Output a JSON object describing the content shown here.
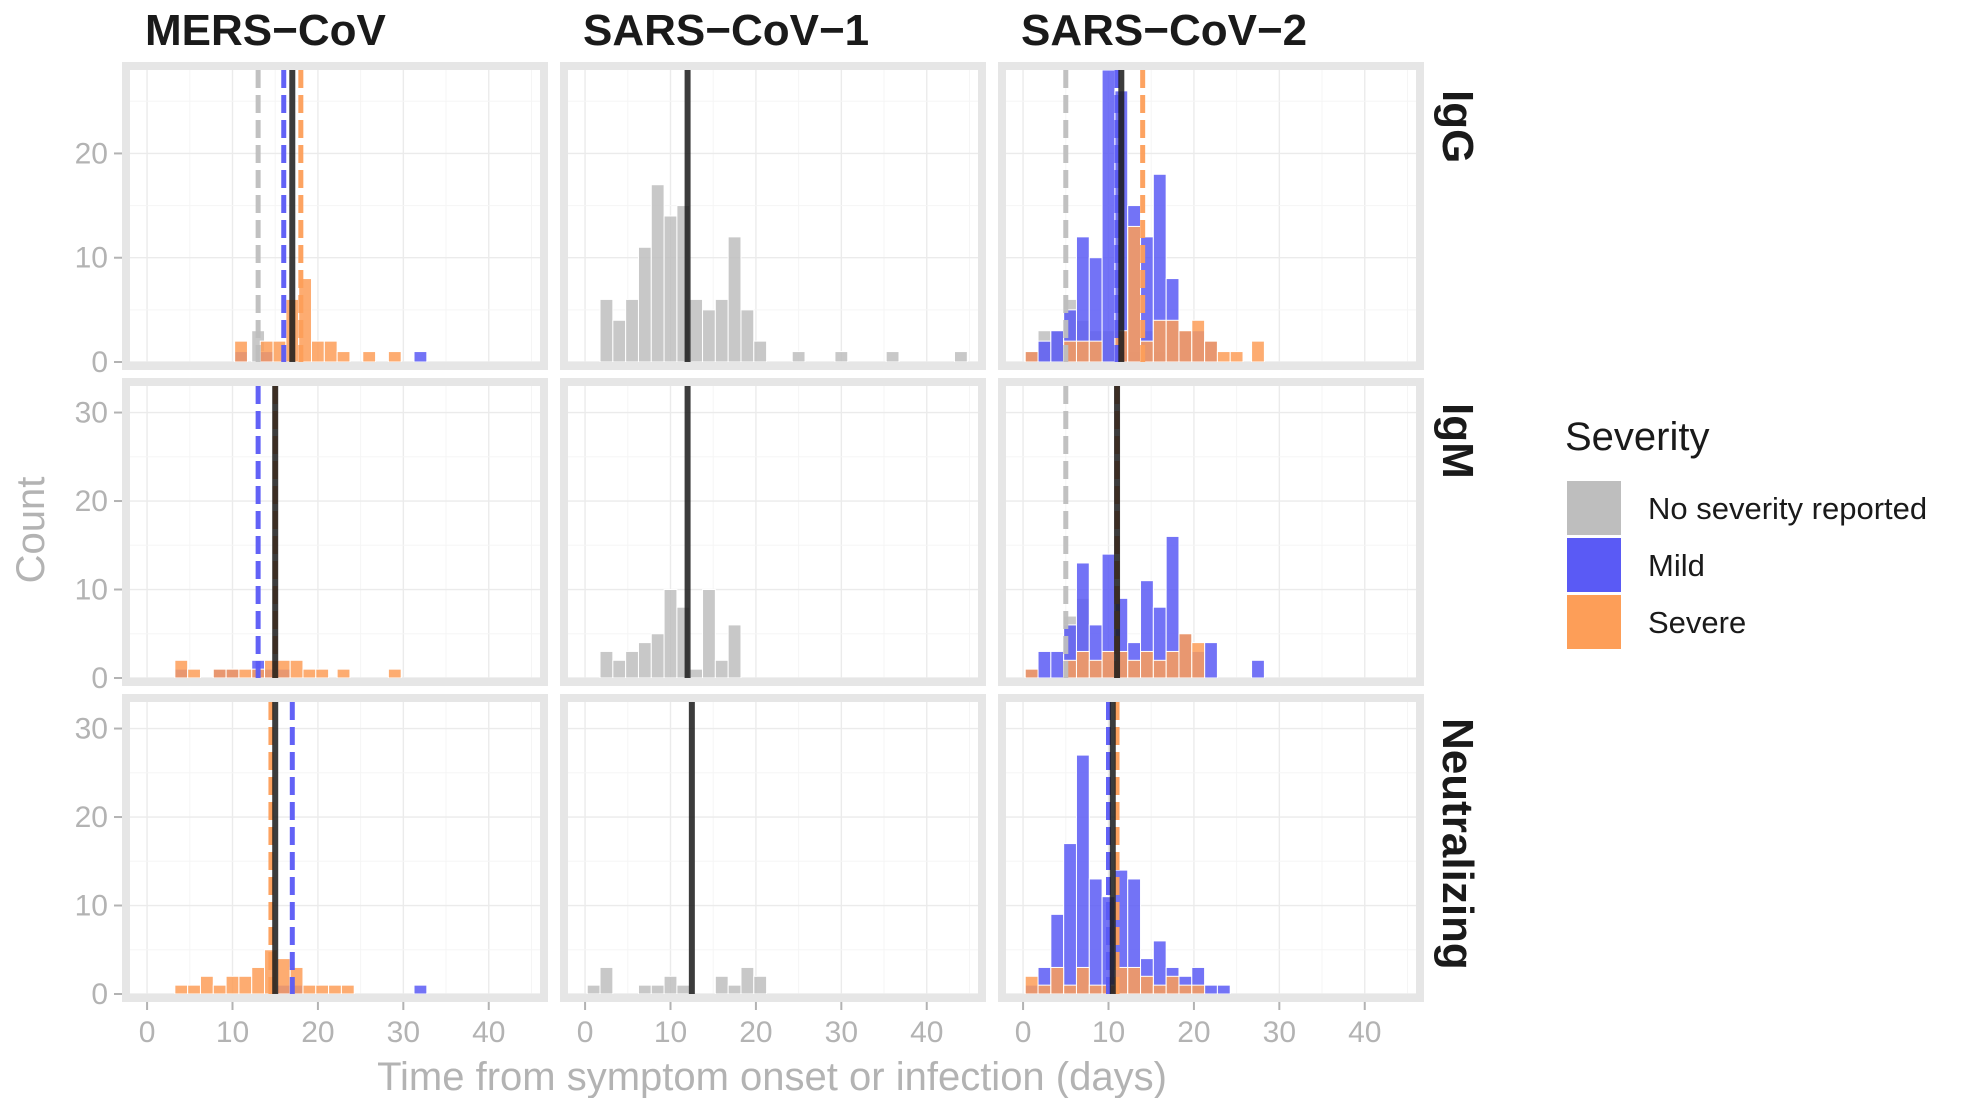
{
  "chart_data": {
    "type": "bar",
    "subtype": "faceted histogram",
    "columns": [
      "MERS−CoV",
      "SARS−CoV−1",
      "SARS−CoV−2"
    ],
    "rows": [
      "IgG",
      "IgM",
      "Neutralizing"
    ],
    "xlabel": "Time from symptom onset or infection (days)",
    "ylabel": "Count",
    "xlim": [
      -2,
      46
    ],
    "x_ticks": [
      0,
      10,
      20,
      30,
      40
    ],
    "row_ylim": [
      [
        0,
        28
      ],
      [
        0,
        33
      ],
      [
        0,
        33
      ]
    ],
    "row_y_ticks": [
      [
        0,
        10,
        20
      ],
      [
        0,
        10,
        20,
        30
      ],
      [
        0,
        10,
        20,
        30
      ]
    ],
    "bin_width": 1.5,
    "grid": true,
    "legend": {
      "title": "Severity",
      "position": "right",
      "items": [
        {
          "key": "none",
          "label": "No severity reported",
          "color": "#bebebe"
        },
        {
          "key": "mild",
          "label": "Mild",
          "color": "#5a5af5"
        },
        {
          "key": "severe",
          "label": "Severe",
          "color": "#fd9e58"
        }
      ]
    },
    "overlap_color": "#b54a48",
    "panels": [
      {
        "row": 0,
        "col": 0,
        "series": {
          "none": [
            [
              13,
              3
            ]
          ],
          "mild": [
            [
              11,
              1
            ],
            [
              14,
              1
            ],
            [
              32,
              1
            ]
          ],
          "severe": [
            [
              11,
              2
            ],
            [
              14,
              2
            ],
            [
              15.5,
              2
            ],
            [
              17,
              6
            ],
            [
              18.5,
              8
            ],
            [
              20,
              2
            ],
            [
              21.5,
              2
            ],
            [
              23,
              1
            ],
            [
              26,
              1
            ],
            [
              29,
              1
            ]
          ]
        },
        "lines": [
          {
            "key": "none",
            "x": 13,
            "style": "dashed"
          },
          {
            "key": "mild",
            "x": 16,
            "style": "dashed"
          },
          {
            "key": "severe",
            "x": 18,
            "style": "dashed"
          },
          {
            "key": "overall",
            "x": 17,
            "style": "solid"
          }
        ]
      },
      {
        "row": 0,
        "col": 1,
        "series": {
          "none": [
            [
              2.5,
              6
            ],
            [
              4,
              4
            ],
            [
              5.5,
              6
            ],
            [
              7,
              11
            ],
            [
              8.5,
              17
            ],
            [
              10,
              14
            ],
            [
              11.5,
              15
            ],
            [
              13,
              6
            ],
            [
              14.5,
              5
            ],
            [
              16,
              6
            ],
            [
              17.5,
              12
            ],
            [
              19,
              5
            ],
            [
              20.5,
              2
            ],
            [
              25,
              1
            ],
            [
              30,
              1
            ],
            [
              36,
              1
            ],
            [
              44,
              1
            ]
          ],
          "mild": [],
          "severe": []
        },
        "lines": [
          {
            "key": "overall",
            "x": 12,
            "style": "solid"
          }
        ]
      },
      {
        "row": 0,
        "col": 2,
        "series": {
          "none": [
            [
              2.5,
              3
            ],
            [
              4,
              3
            ],
            [
              5.5,
              6
            ],
            [
              7,
              4
            ],
            [
              8.5,
              3
            ],
            [
              10,
              3
            ],
            [
              11.5,
              1
            ],
            [
              13,
              1
            ],
            [
              14.5,
              3
            ],
            [
              16,
              1
            ]
          ],
          "mild": [
            [
              1,
              1
            ],
            [
              2.5,
              2
            ],
            [
              4,
              3
            ],
            [
              5.5,
              5
            ],
            [
              7,
              12
            ],
            [
              8.5,
              10
            ],
            [
              10,
              28
            ],
            [
              11.5,
              26
            ],
            [
              13,
              15
            ],
            [
              14.5,
              12
            ],
            [
              16,
              18
            ],
            [
              17.5,
              8
            ],
            [
              19,
              3
            ],
            [
              20.5,
              3
            ],
            [
              22,
              2
            ]
          ],
          "severe": [
            [
              1,
              1
            ],
            [
              5.5,
              2
            ],
            [
              7,
              2
            ],
            [
              8.5,
              2
            ],
            [
              11.5,
              3
            ],
            [
              13,
              13
            ],
            [
              14.5,
              2
            ],
            [
              16,
              4
            ],
            [
              17.5,
              4
            ],
            [
              19,
              3
            ],
            [
              20.5,
              4
            ],
            [
              22,
              2
            ],
            [
              23.5,
              1
            ],
            [
              25,
              1
            ],
            [
              27.5,
              2
            ]
          ]
        },
        "lines": [
          {
            "key": "none",
            "x": 5,
            "style": "dashed"
          },
          {
            "key": "mild",
            "x": 11,
            "style": "dashed"
          },
          {
            "key": "severe",
            "x": 14,
            "style": "dashed"
          },
          {
            "key": "overall",
            "x": 11.5,
            "style": "solid"
          }
        ]
      },
      {
        "row": 1,
        "col": 0,
        "series": {
          "none": [],
          "mild": [
            [
              4,
              1
            ],
            [
              8.5,
              1
            ],
            [
              10,
              1
            ],
            [
              13,
              2
            ],
            [
              14.5,
              1
            ],
            [
              16,
              1
            ]
          ],
          "severe": [
            [
              4,
              2
            ],
            [
              5.5,
              1
            ],
            [
              8.5,
              1
            ],
            [
              10,
              1
            ],
            [
              11.5,
              1
            ],
            [
              13,
              1
            ],
            [
              14.5,
              2
            ],
            [
              16,
              2
            ],
            [
              17.5,
              2
            ],
            [
              19,
              1
            ],
            [
              20.5,
              1
            ],
            [
              23,
              1
            ],
            [
              29,
              1
            ]
          ]
        },
        "lines": [
          {
            "key": "mild",
            "x": 13,
            "style": "dashed"
          },
          {
            "key": "severe",
            "x": 15,
            "style": "dashed"
          },
          {
            "key": "overall",
            "x": 15,
            "style": "solid"
          }
        ]
      },
      {
        "row": 1,
        "col": 1,
        "series": {
          "none": [
            [
              2.5,
              3
            ],
            [
              4,
              2
            ],
            [
              5.5,
              3
            ],
            [
              7,
              4
            ],
            [
              8.5,
              5
            ],
            [
              10,
              10
            ],
            [
              11.5,
              8
            ],
            [
              13,
              1
            ],
            [
              14.5,
              10
            ],
            [
              16,
              2
            ],
            [
              17.5,
              6
            ]
          ],
          "mild": [],
          "severe": []
        },
        "lines": [
          {
            "key": "overall",
            "x": 12,
            "style": "solid"
          }
        ]
      },
      {
        "row": 1,
        "col": 2,
        "series": {
          "none": [
            [
              5.5,
              7
            ],
            [
              7,
              9
            ],
            [
              10,
              2
            ],
            [
              11.5,
              2
            ]
          ],
          "mild": [
            [
              1,
              1
            ],
            [
              2.5,
              3
            ],
            [
              4,
              3
            ],
            [
              5.5,
              6
            ],
            [
              7,
              13
            ],
            [
              8.5,
              6
            ],
            [
              10,
              14
            ],
            [
              11.5,
              9
            ],
            [
              13,
              4
            ],
            [
              14.5,
              11
            ],
            [
              16,
              8
            ],
            [
              17.5,
              16
            ],
            [
              19,
              5
            ],
            [
              20.5,
              3
            ],
            [
              22,
              4
            ],
            [
              27.5,
              2
            ]
          ],
          "severe": [
            [
              1,
              1
            ],
            [
              5.5,
              2
            ],
            [
              7,
              3
            ],
            [
              8.5,
              2
            ],
            [
              10,
              3
            ],
            [
              11.5,
              3
            ],
            [
              13,
              2
            ],
            [
              14.5,
              3
            ],
            [
              16,
              2
            ],
            [
              17.5,
              3
            ],
            [
              19,
              5
            ],
            [
              20.5,
              4
            ]
          ]
        },
        "lines": [
          {
            "key": "none",
            "x": 5,
            "style": "dashed"
          },
          {
            "key": "mild",
            "x": 11,
            "style": "dashed"
          },
          {
            "key": "severe",
            "x": 11,
            "style": "dashed"
          },
          {
            "key": "overall",
            "x": 11,
            "style": "solid"
          }
        ]
      },
      {
        "row": 2,
        "col": 0,
        "series": {
          "none": [],
          "mild": [
            [
              16,
              1
            ],
            [
              17.5,
              1
            ],
            [
              32,
              1
            ]
          ],
          "severe": [
            [
              4,
              1
            ],
            [
              5.5,
              1
            ],
            [
              7,
              2
            ],
            [
              8.5,
              1
            ],
            [
              10,
              2
            ],
            [
              11.5,
              2
            ],
            [
              13,
              3
            ],
            [
              14.5,
              5
            ],
            [
              16,
              4
            ],
            [
              17.5,
              3
            ],
            [
              19,
              1
            ],
            [
              20.5,
              1
            ],
            [
              22,
              1
            ],
            [
              23.5,
              1
            ]
          ]
        },
        "lines": [
          {
            "key": "severe",
            "x": 14.5,
            "style": "dashed"
          },
          {
            "key": "mild",
            "x": 17,
            "style": "dashed"
          },
          {
            "key": "overall",
            "x": 15,
            "style": "solid"
          }
        ]
      },
      {
        "row": 2,
        "col": 1,
        "series": {
          "none": [
            [
              1,
              1
            ],
            [
              2.5,
              3
            ],
            [
              7,
              1
            ],
            [
              8.5,
              1
            ],
            [
              10,
              2
            ],
            [
              11.5,
              1
            ],
            [
              16,
              2
            ],
            [
              17.5,
              1
            ],
            [
              19,
              3
            ],
            [
              20.5,
              2
            ]
          ],
          "mild": [],
          "severe": []
        },
        "lines": [
          {
            "key": "overall",
            "x": 12.5,
            "style": "solid"
          }
        ]
      },
      {
        "row": 2,
        "col": 2,
        "series": {
          "none": [],
          "mild": [
            [
              1,
              1
            ],
            [
              2.5,
              3
            ],
            [
              4,
              9
            ],
            [
              5.5,
              17
            ],
            [
              7,
              27
            ],
            [
              8.5,
              13
            ],
            [
              10,
              11
            ],
            [
              11.5,
              14
            ],
            [
              13,
              13
            ],
            [
              14.5,
              4
            ],
            [
              16,
              6
            ],
            [
              17.5,
              3
            ],
            [
              19,
              2
            ],
            [
              20.5,
              3
            ],
            [
              22,
              1
            ],
            [
              23.5,
              1
            ]
          ],
          "severe": [
            [
              1,
              2
            ],
            [
              2.5,
              1
            ],
            [
              4,
              3
            ],
            [
              5.5,
              1
            ],
            [
              7,
              3
            ],
            [
              8.5,
              1
            ],
            [
              10,
              1
            ],
            [
              11.5,
              3
            ],
            [
              13,
              3
            ],
            [
              14.5,
              2
            ],
            [
              16,
              1
            ],
            [
              17.5,
              2
            ],
            [
              19,
              1
            ],
            [
              20.5,
              1
            ]
          ]
        },
        "lines": [
          {
            "key": "mild",
            "x": 10,
            "style": "dashed"
          },
          {
            "key": "severe",
            "x": 11,
            "style": "dashed"
          },
          {
            "key": "overall",
            "x": 10.5,
            "style": "solid"
          }
        ]
      }
    ]
  }
}
